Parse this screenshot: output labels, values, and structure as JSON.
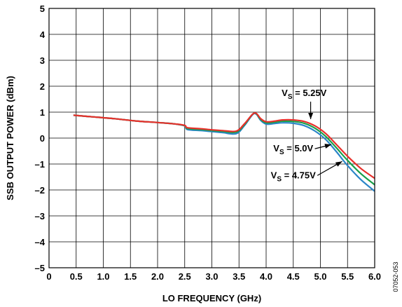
{
  "chart_data": {
    "type": "line",
    "title": "",
    "xlabel": "LO FREQUENCY (GHz)",
    "ylabel": "SSB OUTPUT POWER (dBm)",
    "xlim": [
      0,
      6
    ],
    "ylim": [
      -5,
      5
    ],
    "x_ticks": [
      "0",
      "0.5",
      "1.0",
      "1.5",
      "2.0",
      "2.5",
      "3.0",
      "3.5",
      "4.0",
      "4.5",
      "5.0",
      "5.5",
      "6.0"
    ],
    "y_ticks": [
      "5",
      "4",
      "3",
      "2",
      "1",
      "0",
      "–1",
      "–2",
      "–3",
      "–4",
      "–5"
    ],
    "grid": true,
    "x": [
      0.45,
      0.8,
      1.2,
      1.6,
      2.0,
      2.3,
      2.5,
      2.55,
      2.8,
      3.0,
      3.2,
      3.45,
      3.6,
      3.75,
      3.82,
      3.9,
      4.0,
      4.15,
      4.3,
      4.5,
      4.7,
      4.9,
      5.1,
      5.3,
      5.5,
      5.75,
      6.0
    ],
    "series": [
      {
        "color": "#e8302b",
        "values": [
          0.88,
          0.82,
          0.75,
          0.66,
          0.6,
          0.55,
          0.49,
          0.4,
          0.36,
          0.32,
          0.29,
          0.27,
          0.55,
          0.92,
          0.95,
          0.75,
          0.63,
          0.65,
          0.7,
          0.7,
          0.64,
          0.47,
          0.17,
          -0.26,
          -0.7,
          -1.18,
          -1.55
        ]
      },
      {
        "color": "#1a9f4a",
        "values": [
          0.88,
          0.82,
          0.75,
          0.66,
          0.6,
          0.55,
          0.48,
          0.37,
          0.33,
          0.29,
          0.26,
          0.23,
          0.52,
          0.92,
          0.94,
          0.72,
          0.59,
          0.61,
          0.65,
          0.64,
          0.57,
          0.38,
          0.06,
          -0.39,
          -0.86,
          -1.38,
          -1.8
        ]
      },
      {
        "color": "#2b86c8",
        "values": [
          0.88,
          0.82,
          0.75,
          0.66,
          0.6,
          0.55,
          0.47,
          0.33,
          0.29,
          0.25,
          0.21,
          0.17,
          0.48,
          0.9,
          0.92,
          0.68,
          0.54,
          0.56,
          0.59,
          0.57,
          0.48,
          0.27,
          -0.06,
          -0.54,
          -1.06,
          -1.61,
          -2.05
        ]
      }
    ],
    "annotations": [
      {
        "main": "V",
        "sub": "S",
        "rest": " = 5.25V",
        "x": 4.7,
        "y": 1.62,
        "arrow_to": [
          4.82,
          0.73
        ]
      },
      {
        "main": "V",
        "sub": "S",
        "rest": " = 5.0V",
        "x": 4.5,
        "y": -0.52,
        "arrow_to": [
          5.2,
          -0.25
        ]
      },
      {
        "main": "V",
        "sub": "S",
        "rest": " = 4.75V",
        "x": 4.5,
        "y": -1.55,
        "arrow_to": [
          5.4,
          -0.9
        ]
      }
    ],
    "figure_id": "07052-053"
  }
}
